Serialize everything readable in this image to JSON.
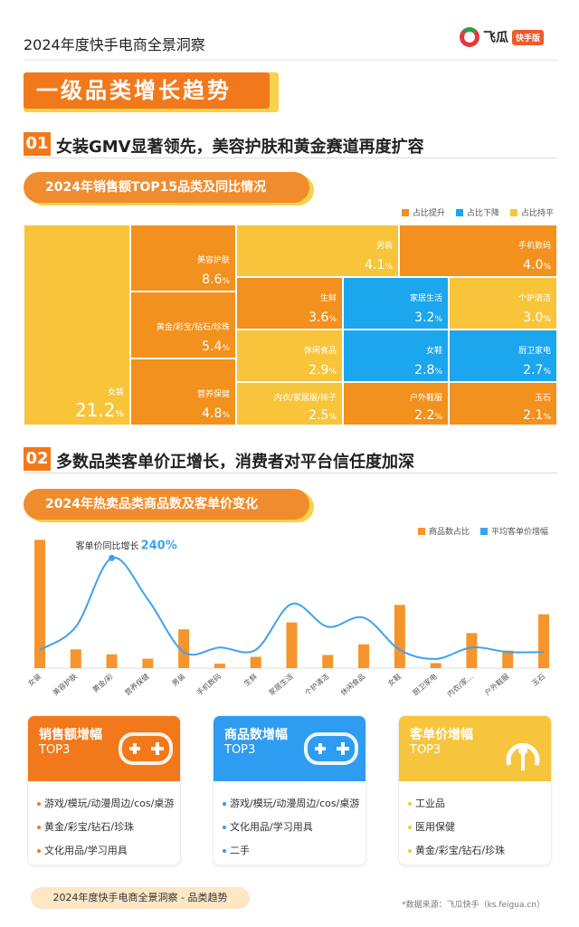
{
  "header": {
    "title": "2024年度快手电商全景洞察",
    "brand_name": "飞瓜",
    "brand_badge": "快手版"
  },
  "main_title": "一级品类增长趋势",
  "section1": {
    "num": "01",
    "title": "女装GMV显著领先，美容护肤和黄金赛道再度扩容",
    "pill": "2024年销售额TOP15品类及同比情况",
    "legend": [
      "占比提升",
      "占比下降",
      "占比持平"
    ],
    "colors": {
      "up": "#f2911e",
      "down": "#1ba6ee",
      "flat": "#f8c43a"
    }
  },
  "treemap": [
    {
      "name": "女装",
      "value": "21.2",
      "unit": "%",
      "trend": "flat"
    },
    {
      "name": "美容护肤",
      "value": "8.6",
      "unit": "%",
      "trend": "up"
    },
    {
      "name": "黄金/彩宝/钻石/珍珠",
      "value": "5.4",
      "unit": "%",
      "trend": "up"
    },
    {
      "name": "营养保健",
      "value": "4.8",
      "unit": "%",
      "trend": "up"
    },
    {
      "name": "男装",
      "value": "4.1",
      "unit": "%",
      "trend": "flat"
    },
    {
      "name": "手机数码",
      "value": "4.0",
      "unit": "%",
      "trend": "up"
    },
    {
      "name": "生鲜",
      "value": "3.6",
      "unit": "%",
      "trend": "up"
    },
    {
      "name": "家居生活",
      "value": "3.2",
      "unit": "%",
      "trend": "down"
    },
    {
      "name": "个护清洁",
      "value": "3.0",
      "unit": "%",
      "trend": "flat"
    },
    {
      "name": "休闲食品",
      "value": "2.9",
      "unit": "%",
      "trend": "flat"
    },
    {
      "name": "女鞋",
      "value": "2.8",
      "unit": "%",
      "trend": "down"
    },
    {
      "name": "厨卫家电",
      "value": "2.7",
      "unit": "%",
      "trend": "down"
    },
    {
      "name": "内衣/家居服/袜子",
      "value": "2.5",
      "unit": "%",
      "trend": "flat"
    },
    {
      "name": "户外鞋服",
      "value": "2.2",
      "unit": "%",
      "trend": "up"
    },
    {
      "name": "玉石",
      "value": "2.1",
      "unit": "%",
      "trend": "up"
    }
  ],
  "section2": {
    "num": "02",
    "title": "多数品类客单价正增长，消费者对平台信任度加深",
    "pill": "2024年热卖品类商品数及客单价变化"
  },
  "chart_data": {
    "type": "bar",
    "title": "2024年热卖品类商品数及客单价变化",
    "categories": [
      "女装",
      "美容护肤",
      "黄金/彩",
      "营养保健",
      "男装",
      "手机数码",
      "生鲜",
      "家居生活",
      "个护清洁",
      "休闲食品",
      "女鞋",
      "厨卫家电",
      "内衣/家...",
      "户外鞋服",
      "玉石"
    ],
    "series": [
      {
        "name": "商品数占比",
        "kind": "bar",
        "color": "#f5952b",
        "values": [
          20.5,
          3.0,
          2.2,
          1.5,
          6.2,
          0.7,
          1.8,
          7.3,
          2.1,
          3.8,
          10.1,
          0.8,
          5.6,
          2.8,
          8.6
        ]
      },
      {
        "name": "平均客单价增幅",
        "kind": "line",
        "color": "#3ea2f0",
        "values": [
          40,
          90,
          240,
          150,
          35,
          45,
          40,
          140,
          90,
          110,
          40,
          20,
          45,
          35,
          35
        ]
      }
    ],
    "annotation": {
      "label": "客单价同比增长",
      "value": "240%",
      "index": 2
    },
    "ylim_bar": [
      0,
      22
    ],
    "ylim_line": [
      0,
      300
    ]
  },
  "cards": [
    {
      "title": "销售额增幅",
      "sub": "TOP3",
      "icon": "gamepad-icon",
      "color": "#f2791b",
      "items": [
        "游戏/模玩/动漫周边/cos/桌游",
        "黄金/彩宝/钻石/珍珠",
        "文化用品/学习用具"
      ]
    },
    {
      "title": "商品数增幅",
      "sub": "TOP3",
      "icon": "gamepad-icon",
      "color": "#2e9cf0",
      "items": [
        "游戏/模玩/动漫周边/cos/桌游",
        "文化用品/学习用具",
        "二手"
      ]
    },
    {
      "title": "客单价增幅",
      "sub": "TOP3",
      "icon": "stethoscope-icon",
      "color": "#f7c53d",
      "items": [
        "工业品",
        "医用保健",
        "黄金/彩宝/钻石/珍珠"
      ]
    }
  ],
  "footer": {
    "pill": "2024年度快手电商全景洞察 - 品类趋势",
    "source": "*数据来源：飞瓜快手（ks.feigua.cn）"
  }
}
